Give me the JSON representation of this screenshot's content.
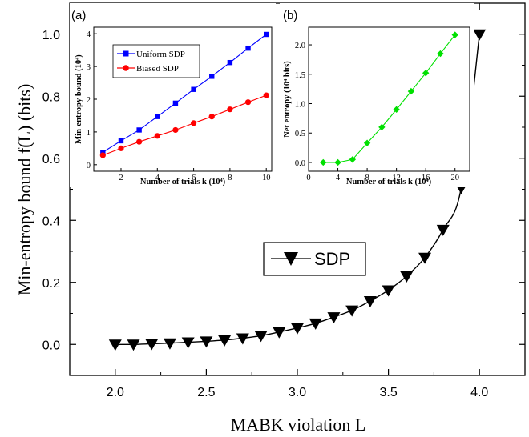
{
  "chart_data": [
    {
      "id": "main",
      "type": "line",
      "xlabel": "MABK violation L",
      "ylabel": "Min-entropy bound f(L) (bits)",
      "xlim": [
        1.75,
        4.25
      ],
      "ylim": [
        -0.1,
        1.1
      ],
      "xticks": [
        2.0,
        2.5,
        3.0,
        3.5,
        4.0
      ],
      "xtick_labels": [
        "2.0",
        "2.5",
        "3.0",
        "3.5",
        "4.0"
      ],
      "yticks": [
        0.0,
        0.2,
        0.4,
        0.6,
        0.8,
        1.0
      ],
      "ytick_labels": [
        "0.0",
        "0.2",
        "0.4",
        "0.6",
        "0.8",
        "1.0"
      ],
      "legend": {
        "position": "center-right",
        "entries": [
          "SDP"
        ]
      },
      "series": [
        {
          "name": "SDP",
          "marker": "triangle-down",
          "color": "#000000",
          "x": [
            2.0,
            2.1,
            2.2,
            2.3,
            2.4,
            2.5,
            2.6,
            2.7,
            2.8,
            2.9,
            3.0,
            3.1,
            3.2,
            3.3,
            3.4,
            3.5,
            3.6,
            3.7,
            3.8,
            3.9,
            4.0
          ],
          "y": [
            0.0,
            0.0,
            0.002,
            0.004,
            0.007,
            0.01,
            0.014,
            0.02,
            0.028,
            0.04,
            0.053,
            0.068,
            0.088,
            0.11,
            0.14,
            0.175,
            0.22,
            0.28,
            0.37,
            0.505,
            1.0
          ]
        }
      ]
    },
    {
      "id": "inset-a",
      "panel_label": "(a)",
      "type": "line",
      "xlabel": "Number of trials k (10⁴)",
      "ylabel": "Min-entropy bound (10⁴)",
      "xlim": [
        0.5,
        10.3
      ],
      "ylim": [
        -0.2,
        4.2
      ],
      "xticks": [
        2,
        4,
        6,
        8,
        10
      ],
      "xtick_labels": [
        "2",
        "4",
        "6",
        "8",
        "10"
      ],
      "yticks": [
        0,
        1,
        2,
        3,
        4
      ],
      "ytick_labels": [
        "0",
        "1",
        "2",
        "3",
        "4"
      ],
      "legend": {
        "position": "top-left",
        "entries": [
          "Uniform SDP",
          "Biased SDP"
        ]
      },
      "series": [
        {
          "name": "Uniform SDP",
          "marker": "square",
          "color": "#0000ff",
          "x": [
            1,
            2,
            3,
            4,
            5,
            6,
            7,
            8,
            9,
            10
          ],
          "y": [
            0.38,
            0.73,
            1.06,
            1.47,
            1.88,
            2.3,
            2.7,
            3.12,
            3.56,
            3.98
          ]
        },
        {
          "name": "Biased SDP",
          "marker": "circle",
          "color": "#ff0000",
          "x": [
            1,
            2,
            3,
            4,
            5,
            6,
            7,
            8,
            9,
            10
          ],
          "y": [
            0.29,
            0.5,
            0.7,
            0.88,
            1.06,
            1.27,
            1.47,
            1.69,
            1.91,
            2.12
          ]
        }
      ]
    },
    {
      "id": "inset-b",
      "panel_label": "(b)",
      "type": "line",
      "xlabel": "Number of trials k (10⁴)",
      "ylabel": "Net entropy (10⁴ bits)",
      "xlim": [
        0,
        22
      ],
      "ylim": [
        -0.15,
        2.3
      ],
      "xticks": [
        0,
        4,
        8,
        12,
        16,
        20
      ],
      "xtick_labels": [
        "0",
        "4",
        "8",
        "12",
        "16",
        "20"
      ],
      "yticks": [
        0.0,
        0.5,
        1.0,
        1.5,
        2.0
      ],
      "ytick_labels": [
        "0.0",
        "0.5",
        "1.0",
        "1.5",
        "2.0"
      ],
      "series": [
        {
          "marker": "diamond",
          "color": "#00e000",
          "x": [
            2,
            4,
            6,
            8,
            10,
            12,
            14,
            16,
            18,
            20
          ],
          "y": [
            0.0,
            0.0,
            0.05,
            0.33,
            0.6,
            0.9,
            1.21,
            1.52,
            1.85,
            2.17
          ]
        }
      ]
    }
  ]
}
